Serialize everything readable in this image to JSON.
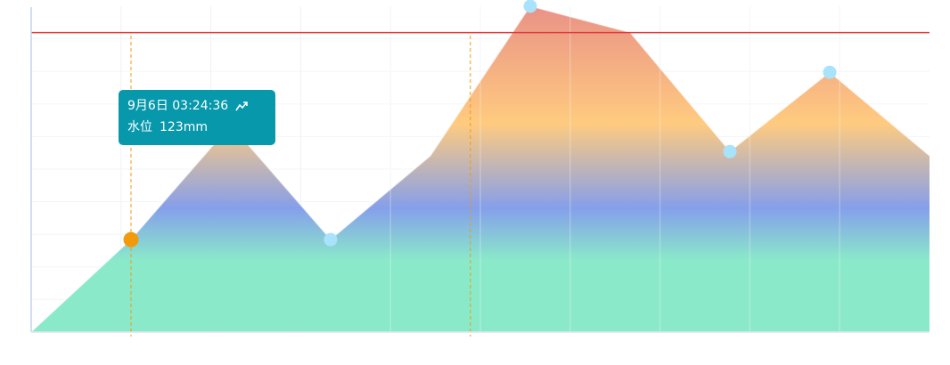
{
  "chart_data": {
    "type": "area",
    "x": [
      0,
      1,
      2,
      3,
      4,
      5,
      6,
      7,
      8,
      9
    ],
    "values": [
      0,
      105,
      235,
      105,
      200,
      370,
      340,
      205,
      295,
      200
    ],
    "ylim": [
      0,
      370
    ],
    "threshold": 340,
    "highlighted_index": 1,
    "vertical_markers": [
      1,
      4.4
    ],
    "grid": true,
    "gradient_colors": [
      "#84e8c6",
      "#84e8c6",
      "#7f9ae9",
      "#ffc879",
      "#e88c80"
    ],
    "accent_color": "#f29a0c",
    "point_color": "#a9e2fb",
    "threshold_color": "#e03c3c",
    "tooltip_bg": "#0798ac"
  },
  "tooltip": {
    "datetime": "9月6日  03:24:36",
    "series_label": "水位",
    "value_text": "123mm",
    "icon": "trend-up-icon"
  }
}
